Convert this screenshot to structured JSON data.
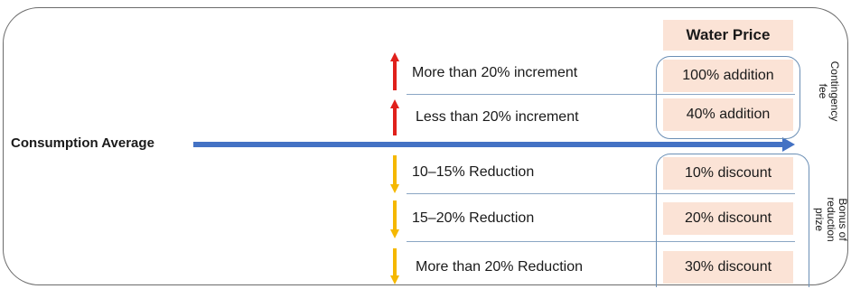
{
  "main": {
    "axis_label": "Consumption Average",
    "header": "Water Price",
    "rows": [
      {
        "label": "More than 20% increment",
        "price": "100% addition",
        "direction": "up",
        "color": "#e0201b"
      },
      {
        "label": "Less than 20% increment",
        "price": "40% addition",
        "direction": "up",
        "color": "#e0201b"
      },
      {
        "label": "10–15% Reduction",
        "price": "10% discount",
        "direction": "down",
        "color": "#f5b800"
      },
      {
        "label": "15–20% Reduction",
        "price": "20% discount",
        "direction": "down",
        "color": "#f5b800"
      },
      {
        "label": "More than 20% Reduction",
        "price": "30% discount",
        "direction": "down",
        "color": "#f5b800"
      }
    ],
    "groups": {
      "contingency": {
        "lines": [
          "Contingency",
          "fee"
        ]
      },
      "bonus": {
        "lines": [
          "Bonus of",
          "reduction",
          "prize"
        ]
      }
    },
    "colors": {
      "axis_arrow": "#4472c4",
      "cell_fill": "#fbe3d6",
      "box_border": "#6b8fb5"
    }
  }
}
